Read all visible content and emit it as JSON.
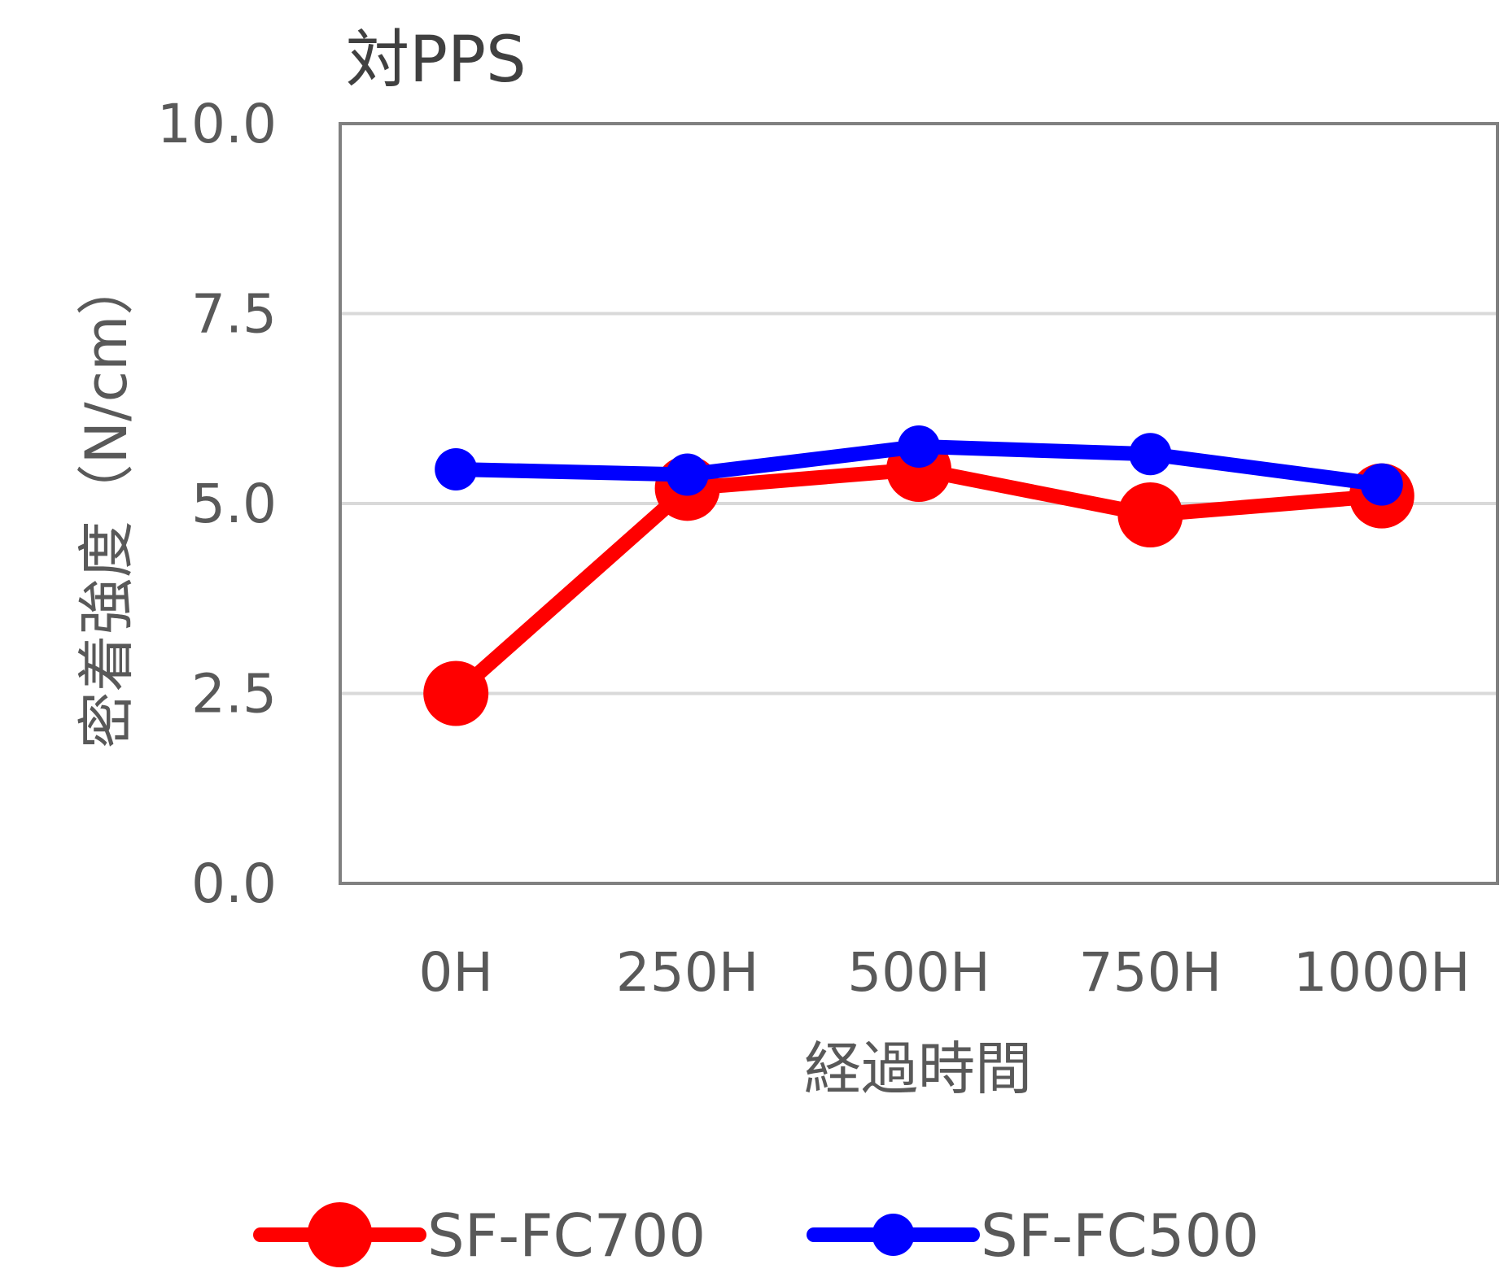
{
  "chart_data": {
    "type": "line",
    "title": "対PPS",
    "xlabel": "経過時間",
    "ylabel": "密着強度（N/cm）",
    "categories": [
      "0H",
      "250H",
      "500H",
      "750H",
      "1000H"
    ],
    "y_ticks": [
      "0.0",
      "2.5",
      "5.0",
      "7.5",
      "10.0"
    ],
    "ylim": [
      0,
      10
    ],
    "grid": true,
    "legend_position": "bottom",
    "series": [
      {
        "name": "SF-FC700",
        "color": "#ff0000",
        "values": [
          2.5,
          5.2,
          5.45,
          4.85,
          5.1
        ]
      },
      {
        "name": "SF-FC500",
        "color": "#0000ff",
        "values": [
          5.45,
          5.38,
          5.75,
          5.65,
          5.25
        ]
      }
    ]
  }
}
